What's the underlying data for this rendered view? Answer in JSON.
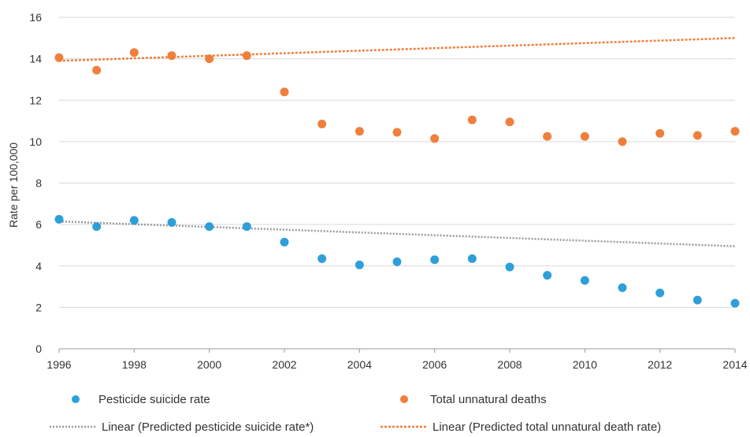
{
  "chart_data": {
    "type": "scatter",
    "title": "",
    "xlabel": "",
    "ylabel": "Rate per 100,000",
    "xlim": [
      1996,
      2014
    ],
    "ylim": [
      0,
      16
    ],
    "x_ticks": [
      "1996",
      "1998",
      "2000",
      "2002",
      "2004",
      "2006",
      "2008",
      "2010",
      "2012",
      "2014"
    ],
    "y_ticks": [
      "0",
      "2",
      "4",
      "6",
      "8",
      "10",
      "12",
      "14",
      "16"
    ],
    "grid": "horizontal",
    "legend_position": "bottom",
    "series": [
      {
        "name": "Pesticide suicide rate",
        "color": "#2e9fd9",
        "x": [
          1996,
          1997,
          1998,
          1999,
          2000,
          2001,
          2002,
          2003,
          2004,
          2005,
          2006,
          2007,
          2008,
          2009,
          2010,
          2011,
          2012,
          2013,
          2014
        ],
        "y": [
          6.25,
          5.9,
          6.2,
          6.1,
          5.9,
          5.9,
          5.15,
          4.35,
          4.05,
          4.2,
          4.3,
          4.35,
          3.95,
          3.55,
          3.3,
          2.95,
          2.7,
          2.35,
          2.2
        ]
      },
      {
        "name": "Total unnatural deaths",
        "color": "#f07f3c",
        "x": [
          1996,
          1997,
          1998,
          1999,
          2000,
          2001,
          2002,
          2003,
          2004,
          2005,
          2006,
          2007,
          2008,
          2009,
          2010,
          2011,
          2012,
          2013,
          2014
        ],
        "y": [
          14.05,
          13.45,
          14.3,
          14.15,
          14.0,
          14.15,
          12.4,
          10.85,
          10.5,
          10.45,
          10.15,
          11.05,
          10.95,
          10.25,
          10.25,
          10.0,
          10.4,
          10.3,
          10.5
        ]
      }
    ],
    "trendlines": [
      {
        "name": "Linear (Predicted pesticide suicide rate*)",
        "color": "#9a9a9a",
        "x": [
          1996,
          2014
        ],
        "y": [
          6.15,
          4.95
        ]
      },
      {
        "name": "Linear (Predicted total unnatural death rate)",
        "color": "#f07f3c",
        "x": [
          1996,
          2014
        ],
        "y": [
          13.9,
          15.0
        ]
      }
    ]
  }
}
